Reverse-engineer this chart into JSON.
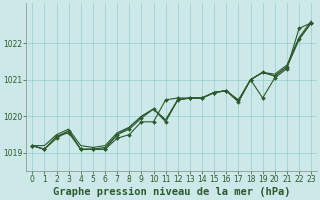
{
  "title": "Graphe pression niveau de la mer (hPa)",
  "background_color": "#cce8e8",
  "grid_color": "#99cccc",
  "line_color": "#2d5a2d",
  "x_ticks": [
    0,
    1,
    2,
    3,
    4,
    5,
    6,
    7,
    8,
    9,
    10,
    11,
    12,
    13,
    14,
    15,
    16,
    17,
    18,
    19,
    20,
    21,
    22,
    23
  ],
  "y_ticks": [
    1019,
    1020,
    1021,
    1022
  ],
  "ylim": [
    1018.5,
    1023.1
  ],
  "xlim": [
    -0.5,
    23.5
  ],
  "series_marked": [
    [
      1019.2,
      1019.1,
      1019.4,
      1019.6,
      1019.1,
      1019.1,
      1019.1,
      1019.4,
      1019.5,
      1019.85,
      1019.85,
      1020.45,
      1020.5,
      1020.5,
      1020.5,
      1020.65,
      1020.7,
      1020.45,
      1021.0,
      1020.5,
      1021.05,
      1021.3,
      1022.4,
      1022.55
    ],
    [
      1019.2,
      1019.1,
      1019.45,
      1019.55,
      1019.1,
      1019.1,
      1019.1,
      1019.5,
      1019.65,
      1019.95,
      1020.2,
      1019.85,
      1020.45,
      1020.5,
      1020.5,
      1020.65,
      1020.7,
      1020.4,
      1021.0,
      1021.2,
      1021.1,
      1021.35,
      1022.1,
      1022.55
    ]
  ],
  "series_smooth": [
    [
      1019.2,
      1019.1,
      1019.45,
      1019.6,
      1019.1,
      1019.1,
      1019.15,
      1019.5,
      1019.7,
      1020.0,
      1020.2,
      1019.9,
      1020.45,
      1020.5,
      1020.5,
      1020.65,
      1020.7,
      1020.4,
      1021.0,
      1021.2,
      1021.1,
      1021.35,
      1022.1,
      1022.55
    ],
    [
      1019.2,
      1019.2,
      1019.5,
      1019.65,
      1019.2,
      1019.15,
      1019.2,
      1019.55,
      1019.7,
      1020.0,
      1020.2,
      1019.9,
      1020.45,
      1020.5,
      1020.5,
      1020.65,
      1020.7,
      1020.4,
      1021.0,
      1021.2,
      1021.15,
      1021.4,
      1022.15,
      1022.6
    ]
  ],
  "marker": "D",
  "marker_size": 2.0,
  "linewidth": 0.8,
  "title_fontsize": 7.5,
  "tick_fontsize": 5.5,
  "figsize": [
    3.2,
    2.0
  ],
  "dpi": 100
}
